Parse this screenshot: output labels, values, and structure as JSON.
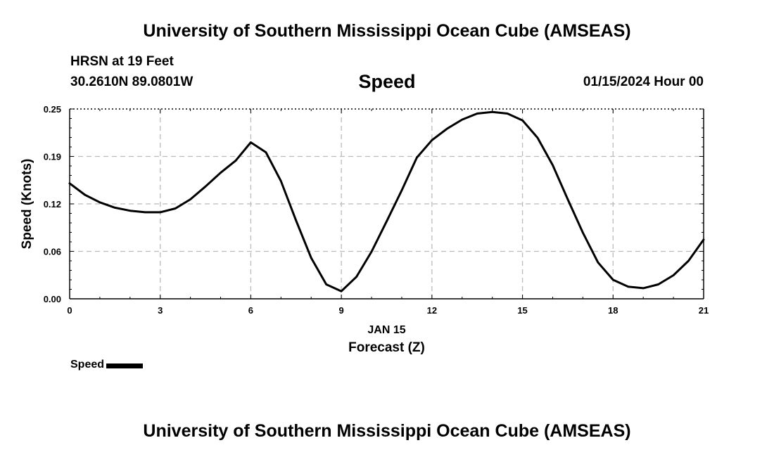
{
  "header": {
    "title": "University of Southern Mississippi Ocean Cube (AMSEAS)",
    "station": "HRSN at 19 Feet",
    "coords": "30.2610N  89.0801W",
    "variable": "Speed",
    "date": "01/15/2024 Hour 00"
  },
  "footer": {
    "title": "University of Southern Mississippi Ocean Cube (AMSEAS)"
  },
  "legend": {
    "label": "Speed"
  },
  "chart_data": {
    "type": "line",
    "title": "Speed",
    "xlabel": "Forecast (Z)",
    "xsublabel": "JAN 15",
    "ylabel": "Speed (Knots)",
    "xlim": [
      0,
      21
    ],
    "ylim": [
      0,
      0.25
    ],
    "xticks": [
      0,
      3,
      6,
      9,
      12,
      15,
      18,
      21
    ],
    "xtick_labels": [
      "0",
      "3",
      "6",
      "9",
      "12",
      "15",
      "18",
      "21"
    ],
    "yticks": [
      0,
      0.0625,
      0.125,
      0.1875,
      0.25
    ],
    "ytick_labels": [
      "0.00",
      "0.06",
      "0.12",
      "0.19",
      "0.25"
    ],
    "grid": true,
    "series": [
      {
        "name": "Speed",
        "color": "#000000",
        "x": [
          0,
          0.5,
          1,
          1.5,
          2,
          2.5,
          3,
          3.5,
          4,
          4.5,
          5,
          5.5,
          6,
          6.5,
          7,
          7.5,
          8,
          8.5,
          9,
          9.5,
          10,
          10.5,
          11,
          11.5,
          12,
          12.5,
          13,
          13.5,
          14,
          14.5,
          15,
          15.5,
          16,
          16.5,
          17,
          17.5,
          18,
          18.5,
          19,
          19.5,
          20,
          20.5,
          21
        ],
        "values": [
          0.152,
          0.137,
          0.127,
          0.12,
          0.116,
          0.114,
          0.114,
          0.119,
          0.131,
          0.148,
          0.166,
          0.182,
          0.206,
          0.193,
          0.155,
          0.103,
          0.054,
          0.019,
          0.01,
          0.029,
          0.062,
          0.102,
          0.143,
          0.186,
          0.209,
          0.224,
          0.236,
          0.244,
          0.246,
          0.244,
          0.235,
          0.212,
          0.176,
          0.131,
          0.087,
          0.048,
          0.025,
          0.016,
          0.014,
          0.019,
          0.031,
          0.05,
          0.078
        ]
      }
    ]
  }
}
